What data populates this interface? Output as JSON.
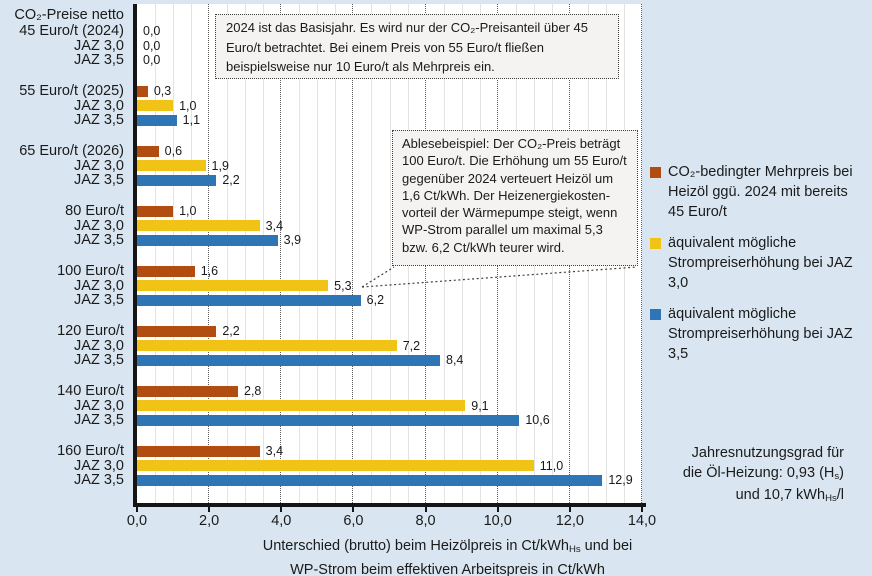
{
  "colors": {
    "background": "#D9E6F1",
    "plot_background": "#FFFFFF",
    "axis": "#151515",
    "series_oil": "#B14D11",
    "series_jaz30": "#F0C316",
    "series_jaz35": "#2E75B6"
  },
  "chart_data": {
    "type": "bar",
    "orientation": "horizontal",
    "y_axis_header": "CO₂-Preise netto",
    "categories": [
      "45 Euro/t (2024)",
      "55 Euro/t (2025)",
      "65 Euro/t (2026)",
      "80 Euro/t",
      "100 Euro/t",
      "120 Euro/t",
      "140 Euro/t",
      "160 Euro/t"
    ],
    "row_labels": [
      "JAZ 3,0",
      "JAZ 3,5"
    ],
    "series": [
      {
        "name": "CO₂-bedingter Mehrpreis bei Heizöl ggü. 2024 mit bereits 45 Euro/t",
        "color": "#B14D11",
        "values": [
          0.0,
          0.3,
          0.6,
          1.0,
          1.6,
          2.2,
          2.8,
          3.4
        ],
        "labels": [
          "0,0",
          "0,3",
          "0,6",
          "1,0",
          "1,6",
          "2,2",
          "2,8",
          "3,4"
        ]
      },
      {
        "name": "äquivalent mögliche Strompreiserhöhung bei JAZ 3,0",
        "color": "#F0C316",
        "values": [
          0.0,
          1.0,
          1.9,
          3.4,
          5.3,
          7.2,
          9.1,
          11.0
        ],
        "labels": [
          "0,0",
          "1,0",
          "1,9",
          "3,4",
          "5,3",
          "7,2",
          "9,1",
          "11,0"
        ]
      },
      {
        "name": "äquivalent mögliche Strompreiserhöhung bei JAZ 3,5",
        "color": "#2E75B6",
        "values": [
          0.0,
          1.1,
          2.2,
          3.9,
          6.2,
          8.4,
          10.6,
          12.9
        ],
        "labels": [
          "0,0",
          "1,1",
          "2,2",
          "3,9",
          "6,2",
          "8,4",
          "10,6",
          "12,9"
        ]
      }
    ],
    "x_axis": {
      "range": [
        0,
        14
      ],
      "major_step": 2,
      "minor_step": 0.5,
      "tick_labels": [
        "0,0",
        "2,0",
        "4,0",
        "6,0",
        "8,0",
        "10,0",
        "12,0",
        "14,0"
      ],
      "title1_pre": "Unterschied (brutto) beim Heizölpreis in Ct/kWh",
      "title1_sub": "Hs",
      "title1_post": " und bei",
      "title2": "WP-Strom beim effektiven Arbeitspreis in Ct/kWh"
    },
    "grid": "minor solid light, major dotted dark",
    "legend_position": "right"
  },
  "annotations": {
    "basisjahr": {
      "text": "2024 ist das Basisjahr. Es wird nur der CO₂-Preisanteil über 45 Euro/t betrachtet. Bei einem Preis von 55 Euro/t fließen beispielsweise nur 10 Euro/t als Mehrpreis ein.",
      "lines": [
        "2024 ist das Basisjahr. Es wird nur der CO₂-Preisanteil über 45",
        "Euro/t betrachtet. Bei einem Preis von 55 Euro/t fließen",
        "beispielsweise nur 10 Euro/t als Mehrpreis ein."
      ]
    },
    "ablesebeispiel": {
      "text": "Ablesebeispiel: Der CO₂-Preis beträgt 100 Euro/t. Die Erhöhung um 55 Euro/t gegenüber 2024 verteuert Heizöl um 1,6 Ct/kWh. Der Heizenergiekostenvorteil der Wärmepumpe steigt, wenn WP-Strom parallel um maximal 5,3 bzw. 6,2 Ct/kWh teurer wird.",
      "lines": [
        "Ablesebeispiel: Der CO₂-Preis beträgt",
        "100 Euro/t. Die Erhöhung um 55 Euro/t",
        "gegenüber 2024 verteuert Heizöl um",
        "1,6 Ct/kWh. Der Heizenergiekosten-",
        "vorteil der Wärmepumpe steigt, wenn",
        "WP-Strom parallel um maximal 5,3",
        "bzw. 6,2 Ct/kWh  teurer wird."
      ]
    },
    "footnote": {
      "line1": "Jahresnutzungsgrad für",
      "line2_pre": "die Öl-Heizung: 0,93 (H",
      "line2_sub": "s",
      "line2_post": ")",
      "line3_pre": "und 10,7 kWh",
      "line3_sub": "Hs",
      "line3_post": "/l"
    }
  },
  "legend": {
    "items": [
      {
        "color": "#B14D11",
        "lines": [
          "CO₂-bedingter Mehrpreis bei",
          "Heizöl ggü. 2024 mit bereits",
          "45 Euro/t"
        ]
      },
      {
        "color": "#F0C316",
        "lines": [
          "äquivalent mögliche",
          "Strompreiserhöhung bei JAZ",
          "3,0"
        ]
      },
      {
        "color": "#2E75B6",
        "lines": [
          "äquivalent mögliche",
          "Strompreiserhöhung bei JAZ",
          "3,5"
        ]
      }
    ]
  }
}
